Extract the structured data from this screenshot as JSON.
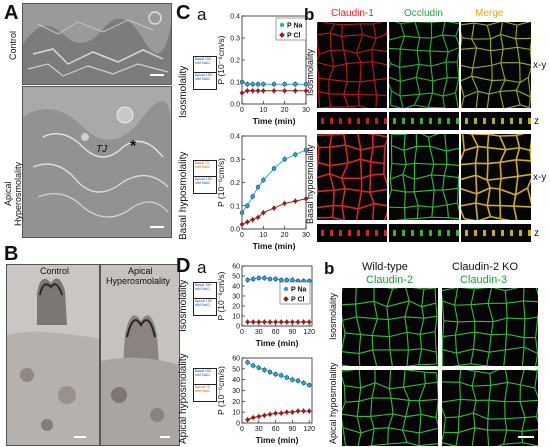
{
  "panels": {
    "A": {
      "letter": "A",
      "control_label": "Control",
      "apical_label_1": "Apical",
      "apical_label_2": "Hyperosmolality",
      "annotation_tj": "TJ",
      "annotation_star": "*"
    },
    "B": {
      "letter": "B",
      "control_label": "Control",
      "apical_label_1": "Apical",
      "apical_label_2": "Hyperosmolality"
    },
    "C": {
      "letter": "C",
      "sub_a": "a",
      "sub_b": "b",
      "row_iso": "Isosmolality",
      "row_basal": "Basal hyposmolality",
      "inset_iso_top": "Basal 150 mM NaCl",
      "inset_iso_bottom": "Apical 150 mM NaCl",
      "inset_basal_top": "Basal 75 mM NaCl",
      "inset_basal_bottom": "Apical 150 mM NaCl",
      "fluor_headers": [
        "Claudin-1",
        "Occludin",
        "Merge"
      ],
      "fluor_header_colors": [
        "#e8201c",
        "#22a63c",
        "#e8a81a"
      ],
      "fluor_row_iso": "Isosmolality",
      "fluor_row_basal": "Basal hyposmolality",
      "view_xy": "x-y",
      "view_z": "z"
    },
    "D": {
      "letter": "D",
      "sub_a": "a",
      "sub_b": "b",
      "row_iso": "Isosmolality",
      "row_apical": "Apical hyposmolality",
      "inset_iso_top": "Basal 150 mM NaCl",
      "inset_iso_bottom": "Apical 150 mM NaCl",
      "inset_apical_top": "Basal 150 mM NaCl",
      "inset_apical_bottom": "Apical 75 mM NaCl",
      "col_wt_1": "Wild-type",
      "col_wt_2": "Claudin-2",
      "col_ko_1": "Claudin-2 KO",
      "col_ko_2": "Claudin-3",
      "row_b_iso": "Isosmolality",
      "row_b_apical": "Apical hyposmolality"
    }
  },
  "colors": {
    "pna": "#2aa6d6",
    "pcl": "#9b1c1c",
    "green_label": "#18a040",
    "red_fluor": "#e8201c",
    "green_fluor": "#39c23a"
  },
  "chart_data": [
    {
      "id": "Ca_iso",
      "type": "line",
      "ylabel": "P (10⁻⁶cm/s)",
      "xlabel": "Time (min)",
      "xlim": [
        0,
        30
      ],
      "ylim": [
        0,
        0.4
      ],
      "xticks": [
        0,
        10,
        20,
        30
      ],
      "yticks": [
        0,
        0.1,
        0.2,
        0.3,
        0.4
      ],
      "yticklabels": [
        "0.0",
        "0.1",
        "0.2",
        "0.3",
        "0.4"
      ],
      "legend": [
        "P Na",
        "P Cl"
      ],
      "legend_position": "top-right",
      "series": [
        {
          "name": "P Na",
          "x": [
            0,
            2.5,
            5,
            7.5,
            10,
            15,
            20,
            25,
            30
          ],
          "values": [
            0.1,
            0.09,
            0.09,
            0.09,
            0.09,
            0.09,
            0.09,
            0.09,
            0.09
          ]
        },
        {
          "name": "P Cl",
          "x": [
            0,
            2.5,
            5,
            7.5,
            10,
            15,
            20,
            25,
            30
          ],
          "values": [
            0.05,
            0.06,
            0.06,
            0.06,
            0.06,
            0.06,
            0.06,
            0.06,
            0.06
          ]
        }
      ]
    },
    {
      "id": "Ca_basal",
      "type": "line",
      "ylabel": "P (10⁻⁶cm/s)",
      "xlabel": "Time (min)",
      "xlim": [
        0,
        30
      ],
      "ylim": [
        0,
        0.4
      ],
      "xticks": [
        0,
        10,
        20,
        30
      ],
      "yticks": [
        0,
        0.1,
        0.2,
        0.3,
        0.4
      ],
      "yticklabels": [
        "0.0",
        "0.1",
        "0.2",
        "0.3",
        "0.4"
      ],
      "series": [
        {
          "name": "P Na",
          "x": [
            0,
            2.5,
            5,
            7.5,
            10,
            15,
            20,
            25,
            30
          ],
          "values": [
            0.07,
            0.1,
            0.14,
            0.18,
            0.21,
            0.26,
            0.3,
            0.32,
            0.34
          ]
        },
        {
          "name": "P Cl",
          "x": [
            0,
            2.5,
            5,
            7.5,
            10,
            15,
            20,
            25,
            30
          ],
          "values": [
            0.02,
            0.03,
            0.04,
            0.05,
            0.07,
            0.09,
            0.11,
            0.12,
            0.13
          ]
        }
      ]
    },
    {
      "id": "Da_iso",
      "type": "line",
      "ylabel": "P (10⁻⁶cm/s)",
      "xlabel": "Time (min)",
      "xlim": [
        0,
        125
      ],
      "ylim": [
        0,
        60
      ],
      "xticks": [
        0,
        30,
        60,
        90,
        120
      ],
      "yticks": [
        0,
        10,
        20,
        30,
        40,
        50,
        60
      ],
      "yticklabels": [
        "0",
        "10",
        "20",
        "30",
        "40",
        "50",
        "60"
      ],
      "legend": [
        "P Na",
        "P Cl"
      ],
      "legend_position": "right",
      "series": [
        {
          "name": "P Na",
          "x": [
            10,
            20,
            30,
            40,
            50,
            60,
            70,
            80,
            90,
            100,
            110,
            120
          ],
          "values": [
            46,
            47,
            48,
            48,
            47,
            47,
            46,
            46,
            46,
            45,
            45,
            45
          ]
        },
        {
          "name": "P Cl",
          "x": [
            10,
            20,
            30,
            40,
            50,
            60,
            70,
            80,
            90,
            100,
            110,
            120
          ],
          "values": [
            4,
            4,
            4,
            4,
            4,
            4,
            4,
            4,
            4,
            4,
            4,
            4
          ]
        }
      ]
    },
    {
      "id": "Da_apical",
      "type": "line",
      "ylabel": "P (10⁻⁶cm/s)",
      "xlabel": "Time (min)",
      "xlim": [
        0,
        125
      ],
      "ylim": [
        0,
        60
      ],
      "xticks": [
        0,
        30,
        60,
        90,
        120
      ],
      "yticks": [
        0,
        10,
        20,
        30,
        40,
        50,
        60
      ],
      "yticklabels": [
        "0",
        "10",
        "20",
        "30",
        "40",
        "50",
        "60"
      ],
      "series": [
        {
          "name": "P Na",
          "x": [
            10,
            20,
            30,
            40,
            50,
            60,
            70,
            80,
            90,
            100,
            110,
            120
          ],
          "values": [
            56,
            53,
            51,
            49,
            47,
            45,
            44,
            42,
            40,
            39,
            37,
            35
          ]
        },
        {
          "name": "P Cl",
          "x": [
            10,
            20,
            30,
            40,
            50,
            60,
            70,
            80,
            90,
            100,
            110,
            120
          ],
          "values": [
            3,
            5,
            6,
            7,
            8,
            9,
            9,
            10,
            10,
            11,
            11,
            11
          ]
        }
      ]
    }
  ]
}
